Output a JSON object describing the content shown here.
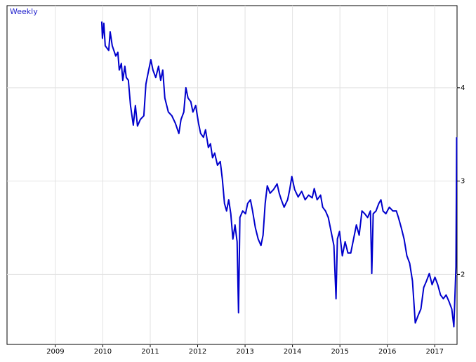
{
  "chart_data": {
    "type": "line",
    "title": "Weekly",
    "x": [
      2010.477,
      2010.492,
      2010.521,
      2010.551,
      2010.625,
      2010.655,
      2010.699,
      2010.773,
      2010.817,
      2010.847,
      2010.891,
      2010.921,
      2010.965,
      2010.995,
      2011.039,
      2011.084,
      2011.143,
      2011.187,
      2011.231,
      2011.291,
      2011.365,
      2011.409,
      2011.468,
      2011.513,
      2011.557,
      2011.616,
      2011.675,
      2011.72,
      2011.764,
      2011.808,
      2011.882,
      2011.956,
      2012.03,
      2012.104,
      2012.149,
      2012.208,
      2012.252,
      2012.297,
      2012.356,
      2012.4,
      2012.459,
      2012.518,
      2012.563,
      2012.622,
      2012.666,
      2012.726,
      2012.77,
      2012.814,
      2012.859,
      2012.918,
      2012.977,
      2013.021,
      2013.066,
      2013.11,
      2013.155,
      2013.199,
      2013.243,
      2013.288,
      2013.332,
      2013.362,
      2013.391,
      2013.45,
      2013.51,
      2013.554,
      2013.613,
      2013.658,
      2013.717,
      2013.776,
      2013.835,
      2013.879,
      2013.924,
      2013.968,
      2014.027,
      2014.101,
      2014.175,
      2014.22,
      2014.264,
      2014.323,
      2014.397,
      2014.442,
      2014.486,
      2014.545,
      2014.619,
      2014.693,
      2014.767,
      2014.841,
      2014.915,
      2014.959,
      2015.019,
      2015.092,
      2015.137,
      2015.196,
      2015.255,
      2015.314,
      2015.373,
      2015.418,
      2015.447,
      2015.492,
      2015.551,
      2015.61,
      2015.669,
      2015.729,
      2015.788,
      2015.847,
      2015.906,
      2015.965,
      2016.024,
      2016.084,
      2016.143,
      2016.172,
      2016.202,
      2016.261,
      2016.32,
      2016.365,
      2016.409,
      2016.468,
      2016.542,
      2016.616,
      2016.69,
      2016.734,
      2016.794,
      2016.853,
      2016.912,
      2016.971,
      2017.03,
      2017.089,
      2017.149,
      2017.208,
      2017.267,
      2017.326,
      2017.385,
      2017.444,
      2017.504,
      2017.563,
      2017.622,
      2017.681,
      2017.74,
      2017.8,
      2017.859,
      2017.903,
      2017.947,
      2017.962
    ],
    "series": [
      {
        "color": "#0000cc",
        "values": [
          4.71,
          4.53,
          4.69,
          4.45,
          4.4,
          4.6,
          4.45,
          4.34,
          4.38,
          4.19,
          4.26,
          4.08,
          4.23,
          4.11,
          4.08,
          3.81,
          3.6,
          3.81,
          3.59,
          3.66,
          3.7,
          4.04,
          4.19,
          4.3,
          4.19,
          4.11,
          4.23,
          4.08,
          4.19,
          3.89,
          3.74,
          3.7,
          3.62,
          3.51,
          3.66,
          3.74,
          4.0,
          3.89,
          3.85,
          3.74,
          3.81,
          3.62,
          3.51,
          3.47,
          3.55,
          3.36,
          3.4,
          3.25,
          3.3,
          3.17,
          3.21,
          3.02,
          2.76,
          2.68,
          2.8,
          2.65,
          2.38,
          2.53,
          2.35,
          1.59,
          2.61,
          2.68,
          2.65,
          2.76,
          2.8,
          2.68,
          2.5,
          2.38,
          2.31,
          2.42,
          2.76,
          2.95,
          2.87,
          2.91,
          2.97,
          2.87,
          2.8,
          2.72,
          2.8,
          2.91,
          3.05,
          2.91,
          2.83,
          2.89,
          2.8,
          2.85,
          2.82,
          2.92,
          2.8,
          2.85,
          2.72,
          2.68,
          2.61,
          2.46,
          2.31,
          1.74,
          2.38,
          2.46,
          2.2,
          2.35,
          2.23,
          2.23,
          2.38,
          2.53,
          2.42,
          2.68,
          2.65,
          2.61,
          2.68,
          2.01,
          2.65,
          2.68,
          2.76,
          2.8,
          2.68,
          2.65,
          2.72,
          2.68,
          2.68,
          2.61,
          2.5,
          2.38,
          2.2,
          2.12,
          1.93,
          1.48,
          1.56,
          1.63,
          1.86,
          1.93,
          2.01,
          1.89,
          1.97,
          1.89,
          1.78,
          1.74,
          1.78,
          1.71,
          1.63,
          1.44,
          2.08,
          3.47
        ]
      }
    ],
    "xlim": [
      2008.48,
      2017.97
    ],
    "xticks": [
      {
        "value": 2009.5,
        "label": "2009"
      },
      {
        "value": 2010.5,
        "label": "2010"
      },
      {
        "value": 2011.5,
        "label": "2011"
      },
      {
        "value": 2012.5,
        "label": "2012"
      },
      {
        "value": 2013.5,
        "label": "2013"
      },
      {
        "value": 2014.5,
        "label": "2014"
      },
      {
        "value": 2015.5,
        "label": "2015"
      },
      {
        "value": 2016.5,
        "label": "2016"
      },
      {
        "value": 2017.5,
        "label": "2017"
      }
    ],
    "ylim": [
      1.25,
      4.88
    ],
    "yticks": [
      2,
      3,
      4
    ],
    "grid": true
  }
}
